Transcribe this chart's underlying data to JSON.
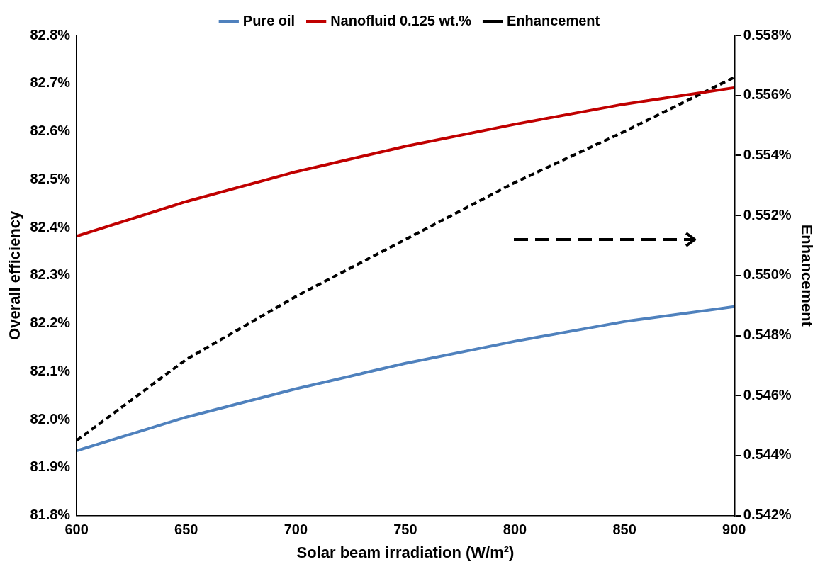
{
  "chart_data": {
    "type": "line",
    "xlabel": "Solar beam irradiation (W/m²)",
    "ylabel": "Overall efficiency",
    "y2label": "Enhancement",
    "x": [
      600,
      650,
      700,
      750,
      800,
      850,
      900
    ],
    "series": [
      {
        "name": "Pure oil",
        "color": "#4f81bd",
        "values": [
          81.935,
          82.005,
          82.064,
          82.117,
          82.163,
          82.204,
          82.235
        ]
      },
      {
        "name": "Nanofluid 0.125 wt.%",
        "color": "#c00000",
        "values": [
          82.382,
          82.454,
          82.516,
          82.569,
          82.615,
          82.657,
          82.691
        ]
      },
      {
        "name": "Enhancement",
        "color": "#000000",
        "axis": "y2",
        "line_style": "dashed",
        "values": [
          0.5445,
          0.5472,
          0.5493,
          0.5512,
          0.5531,
          0.5548,
          0.5566
        ]
      }
    ],
    "xlim": [
      600,
      900
    ],
    "xticks": [
      600,
      650,
      700,
      750,
      800,
      850,
      900
    ],
    "ylim": [
      81.8,
      82.8
    ],
    "yticks": [
      {
        "value": 81.8,
        "label": "81.8%"
      },
      {
        "value": 81.9,
        "label": "81.9%"
      },
      {
        "value": 82.0,
        "label": "82.0%"
      },
      {
        "value": 82.1,
        "label": "82.1%"
      },
      {
        "value": 82.2,
        "label": "82.2%"
      },
      {
        "value": 82.3,
        "label": "82.3%"
      },
      {
        "value": 82.4,
        "label": "82.4%"
      },
      {
        "value": 82.5,
        "label": "82.5%"
      },
      {
        "value": 82.6,
        "label": "82.6%"
      },
      {
        "value": 82.7,
        "label": "82.7%"
      },
      {
        "value": 82.8,
        "label": "82.8%"
      }
    ],
    "y2lim": [
      0.542,
      0.558
    ],
    "y2ticks": [
      {
        "value": 0.542,
        "label": "0.542%"
      },
      {
        "value": 0.544,
        "label": "0.544%"
      },
      {
        "value": 0.546,
        "label": "0.546%"
      },
      {
        "value": 0.548,
        "label": "0.548%"
      },
      {
        "value": 0.55,
        "label": "0.550%"
      },
      {
        "value": 0.552,
        "label": "0.552%"
      },
      {
        "value": 0.554,
        "label": "0.554%"
      },
      {
        "value": 0.556,
        "label": "0.556%"
      },
      {
        "value": 0.558,
        "label": "0.558%"
      }
    ],
    "grid": false,
    "legend": "top",
    "marker": "none"
  }
}
